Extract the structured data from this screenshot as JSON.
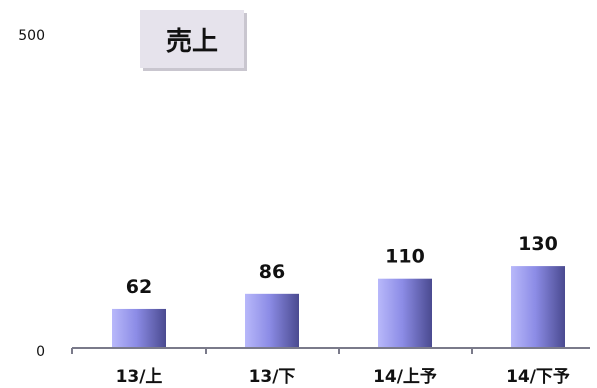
{
  "chart_data": {
    "type": "bar",
    "title": "売上",
    "categories": [
      "13/上",
      "13/下",
      "14/上予",
      "14/下予"
    ],
    "values": [
      62,
      86,
      110,
      130
    ],
    "data_labels": [
      "62",
      "86",
      "110",
      "130"
    ],
    "ylim": [
      0,
      500
    ],
    "y_tick_labels": [
      "0",
      "500"
    ],
    "xlabel": "",
    "ylabel": "",
    "grid": false,
    "legend": "none",
    "colors": {
      "bar_light": "#b0b0f8",
      "bar_mid": "#8080e0",
      "bar_dark": "#4a4a90",
      "axis": "#7a7a8a",
      "text": "#111111"
    }
  }
}
